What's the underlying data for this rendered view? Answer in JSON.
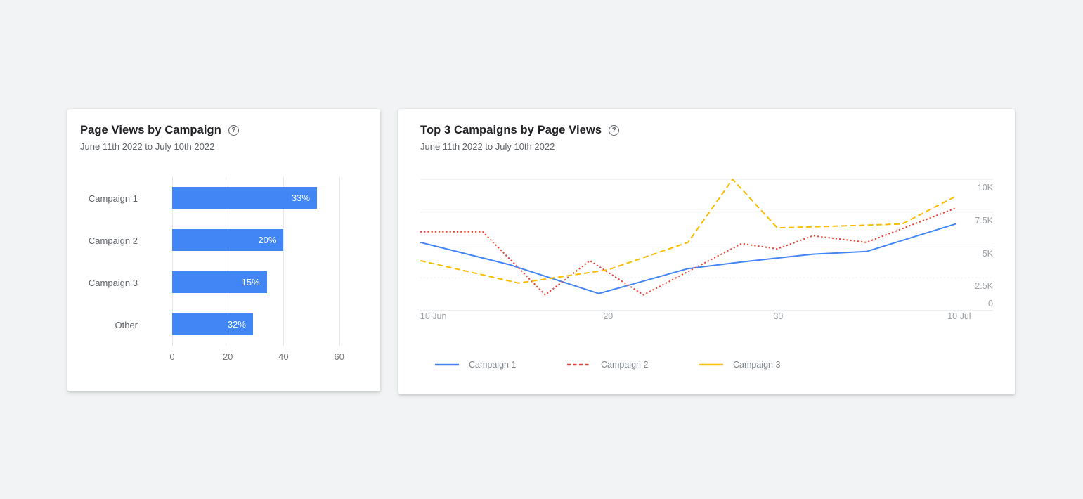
{
  "colors": {
    "page_background": "#f1f3f4",
    "card_background": "#ffffff",
    "bar_color": "#4285f4",
    "series_blue": "#4285f4",
    "series_red": "#ea4335",
    "series_yellow": "#fbbc04"
  },
  "bar_card": {
    "title": "Page Views by Campaign",
    "subtitle": "June 11th 2022 to July 10th 2022",
    "help_icon": "?"
  },
  "line_card": {
    "title": "Top 3 Campaigns by Page Views",
    "subtitle": "June 11th 2022 to July 10th 2022",
    "help_icon": "?"
  },
  "chart_data": [
    {
      "type": "bar",
      "orientation": "horizontal",
      "title": "Page Views by Campaign",
      "categories": [
        "Campaign 1",
        "Campaign 2",
        "Campaign 3",
        "Other"
      ],
      "values": [
        52,
        40,
        34,
        29
      ],
      "bar_labels": [
        "33%",
        "20%",
        "15%",
        "32%"
      ],
      "xlabel": "",
      "ylabel": "",
      "xlim": [
        0,
        60.6
      ],
      "xticks": [
        0,
        20,
        40,
        60
      ],
      "bar_color": "#4285f4",
      "grid": "vertical"
    },
    {
      "type": "line",
      "title": "Top 3 Campaigns by Page Views",
      "x_unit": "days (0 = 10 Jun 2022, 30 = 10 Jul 2022)",
      "x_domain": [
        0,
        30
      ],
      "ylim": [
        0,
        10000
      ],
      "yticks": [
        {
          "value": 0,
          "label": "0"
        },
        {
          "value": 2500,
          "label": "2.5K"
        },
        {
          "value": 5000,
          "label": "5K"
        },
        {
          "value": 7500,
          "label": "7.5K"
        },
        {
          "value": 10000,
          "label": "10K"
        }
      ],
      "xticks": [
        {
          "label": "10 Jun",
          "pos": 0.023
        },
        {
          "label": "20",
          "pos": 0.328
        },
        {
          "label": "30",
          "pos": 0.625
        },
        {
          "label": "10 Jul",
          "pos": 0.941
        }
      ],
      "grid": "horizontal",
      "legend_position": "bottom",
      "series": [
        {
          "name": "Campaign 1",
          "color": "#4285f4",
          "style": "solid",
          "points": [
            [
              0,
              5200
            ],
            [
              5,
              3500
            ],
            [
              10,
              1300
            ],
            [
              15,
              3200
            ],
            [
              18,
              3700
            ],
            [
              22,
              4300
            ],
            [
              25,
              4500
            ],
            [
              30,
              6600
            ]
          ]
        },
        {
          "name": "Campaign 2",
          "color": "#ea4335",
          "style": "dotted",
          "points": [
            [
              0,
              6000
            ],
            [
              3.5,
              6000
            ],
            [
              7,
              1200
            ],
            [
              9.5,
              3800
            ],
            [
              12.5,
              1200
            ],
            [
              18,
              5100
            ],
            [
              20,
              4700
            ],
            [
              22,
              5700
            ],
            [
              25,
              5200
            ],
            [
              30,
              7800
            ]
          ]
        },
        {
          "name": "Campaign 3",
          "color": "#fbbc04",
          "style": "dashed",
          "points": [
            [
              0,
              3800
            ],
            [
              5.5,
              2100
            ],
            [
              10.5,
              3100
            ],
            [
              15,
              5200
            ],
            [
              17.5,
              10000
            ],
            [
              20,
              6300
            ],
            [
              25,
              6500
            ],
            [
              27,
              6600
            ],
            [
              30,
              8700
            ]
          ]
        }
      ]
    }
  ]
}
